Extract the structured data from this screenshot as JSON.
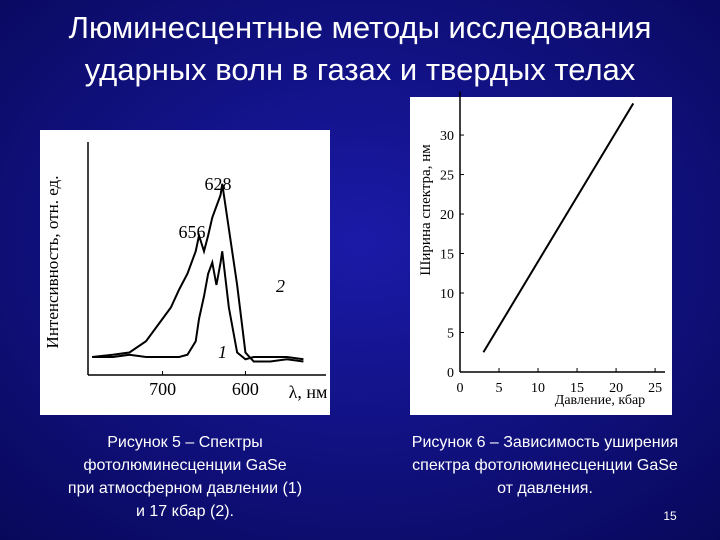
{
  "title": [
    "Люминесцентные методы исследования",
    "ударных волн в газах и твердых телах"
  ],
  "captions": [
    [
      "Рисунок 5 – Спектры",
      "фотолюминесценции GaSe",
      "при атмосферном давлении (1)",
      "и 17 кбар (2)."
    ],
    [
      "Рисунок 6 – Зависимость уширения",
      "спектра фотолюминесценции GaSe",
      "от давления."
    ]
  ],
  "slide_number": "15",
  "chart_data": [
    {
      "type": "line",
      "x_label": "λ, нм",
      "y_label": "Интенсивность, отн. ед.",
      "x": [
        785,
        760,
        740,
        720,
        700,
        690,
        680,
        670,
        660,
        656,
        650,
        645,
        640,
        635,
        630,
        628,
        620,
        610,
        600,
        590,
        570,
        550,
        530
      ],
      "xlim": [
        790,
        510
      ],
      "xticks": [
        700,
        600
      ],
      "ylim": [
        0,
        1
      ],
      "annotations": [
        "628",
        "656"
      ],
      "series": [
        {
          "name": "1",
          "color": "#000000",
          "values": [
            0.08,
            0.08,
            0.09,
            0.08,
            0.08,
            0.08,
            0.08,
            0.09,
            0.15,
            0.25,
            0.35,
            0.45,
            0.5,
            0.4,
            0.5,
            0.55,
            0.3,
            0.1,
            0.07,
            0.08,
            0.08,
            0.08,
            0.07
          ]
        },
        {
          "name": "2",
          "color": "#000000",
          "values": [
            0.08,
            0.09,
            0.1,
            0.15,
            0.25,
            0.3,
            0.38,
            0.45,
            0.55,
            0.62,
            0.55,
            0.62,
            0.7,
            0.75,
            0.8,
            0.85,
            0.65,
            0.4,
            0.1,
            0.06,
            0.06,
            0.07,
            0.06
          ]
        }
      ]
    },
    {
      "type": "line",
      "x_label": "Давление, кбар",
      "y_label": "Ширина спектра, нм",
      "x": [
        3,
        22.2
      ],
      "xlim": [
        0,
        25.5
      ],
      "xticks": [
        0,
        5,
        10,
        15,
        20,
        25
      ],
      "ylim": [
        0,
        34.5
      ],
      "yticks": [
        0,
        5,
        10,
        15,
        20,
        25,
        30
      ],
      "series": [
        {
          "color": "#000000",
          "values": [
            2.5,
            34
          ]
        }
      ]
    }
  ]
}
